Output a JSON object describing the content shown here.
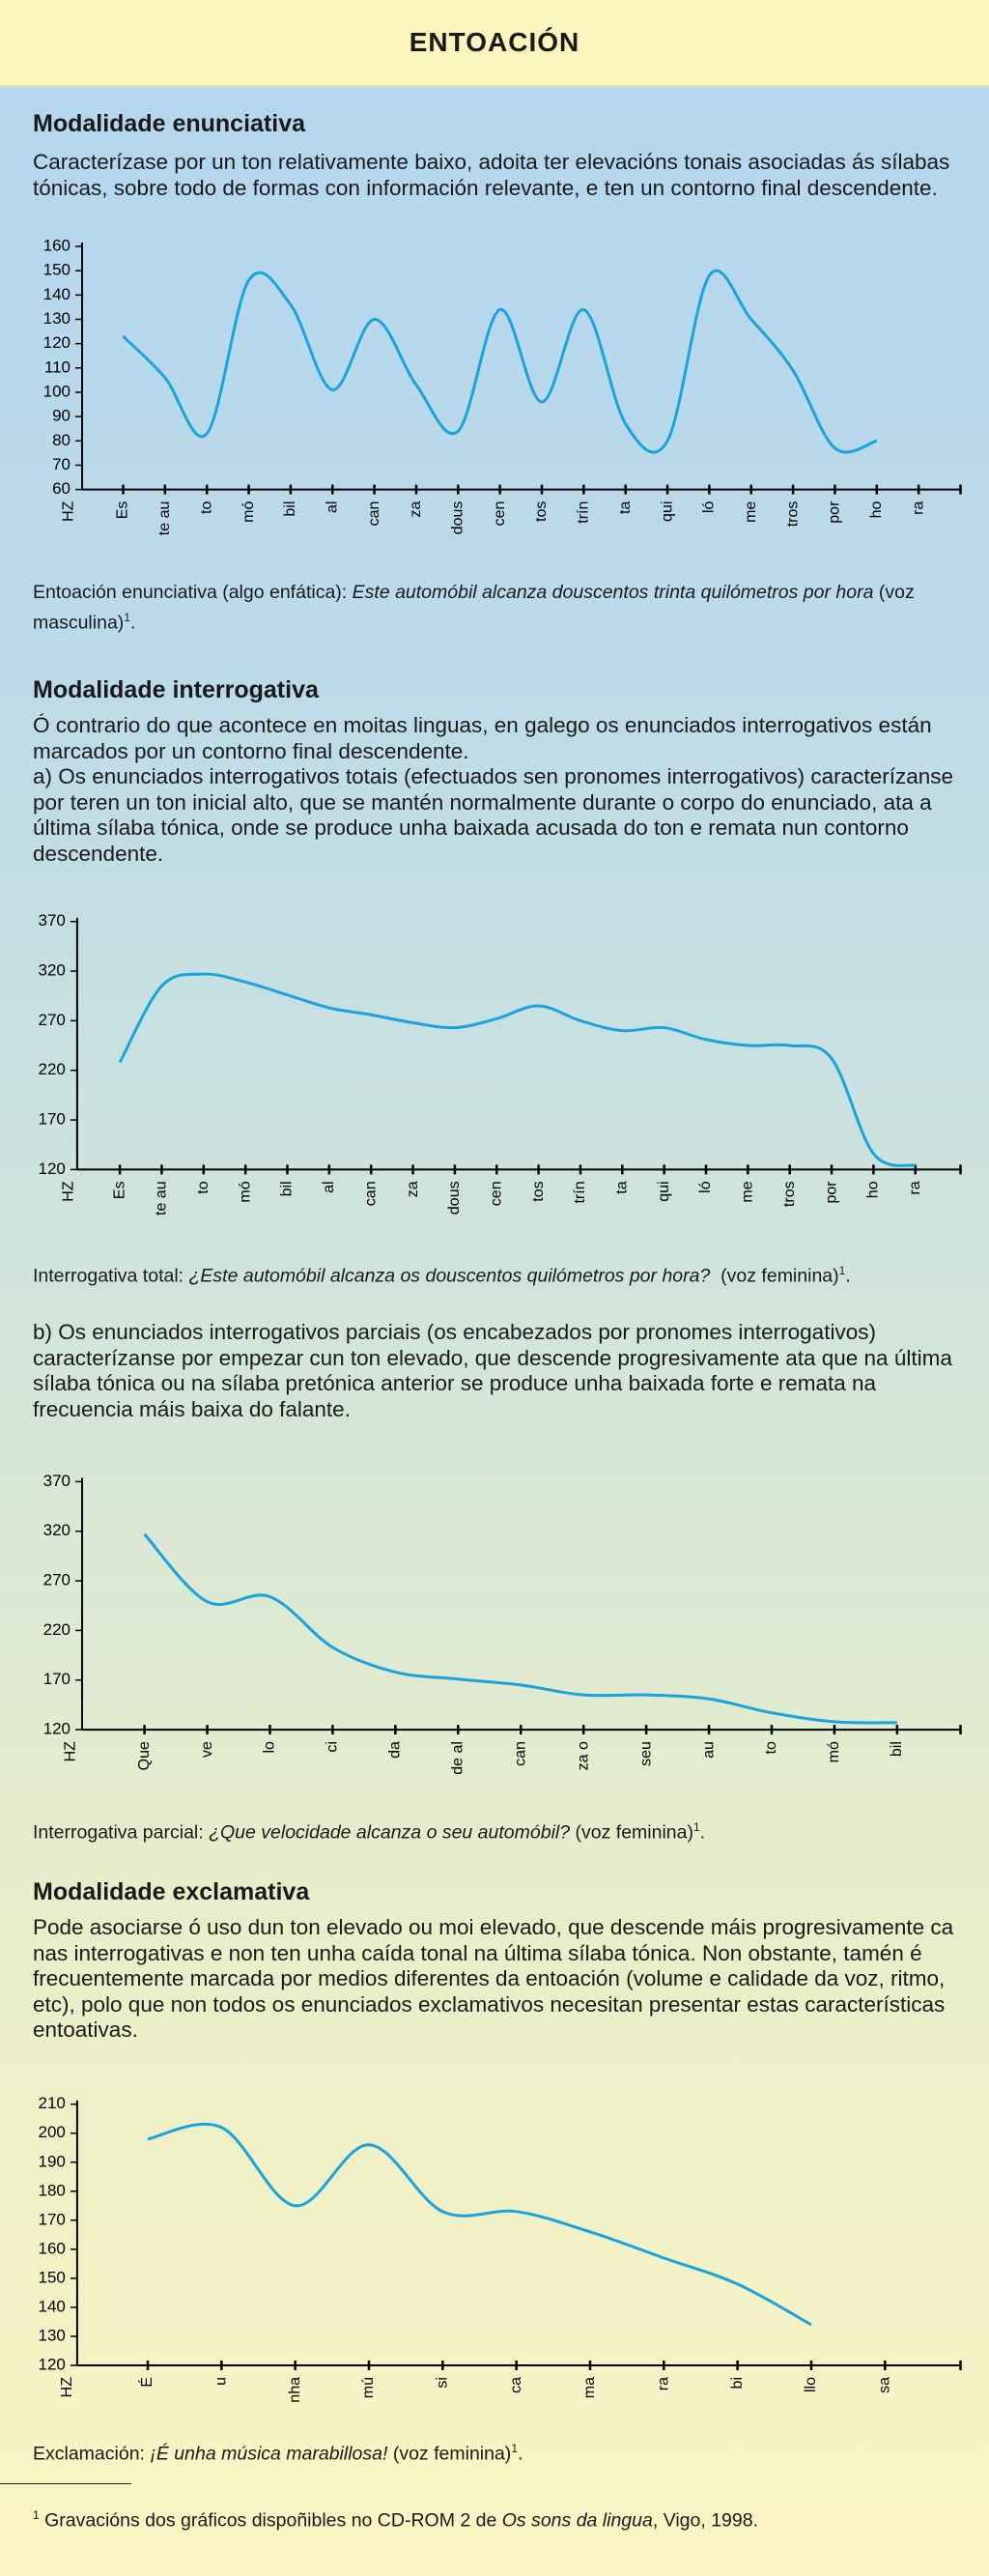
{
  "header": {
    "title": "ENTOACIÓN"
  },
  "sections": [
    {
      "heading": "Modalidade enunciativa",
      "paragraphs": [
        "Caracterízase por un ton relativamente baixo, adoita ter elevacións tonais asociadas ás sílabas tónicas, sobre todo de formas con información relevante, e ten un contorno final descendente."
      ],
      "caption": {
        "lead": "Entoación enunciativa (algo enfática):",
        "example": "Este automóbil alcanza douscentos trinta quilómetros por hora",
        "voice": "(voz masculina)",
        "note": "1",
        "end": "."
      }
    },
    {
      "heading": "Modalidade interrogativa",
      "paragraphs": [
        "Ó contrario do que acontece en moitas linguas, en galego os enunciados interrogativos están marcados por un contorno final descendente.",
        "a) Os enunciados interrogativos totais (efectuados sen pronomes interrogativos) caracterízanse por teren un ton inicial alto, que se mantén normalmente durante o corpo do enunciado, ata a última sílaba tónica, onde se produce unha baixada acusada do ton e remata nun contorno descendente."
      ],
      "caption": {
        "lead": "Interrogativa total:",
        "example": "¿Este automóbil alcanza os douscentos quilómetros por hora?",
        "voice": "(voz feminina)",
        "note": "1",
        "end": "."
      },
      "subsection": {
        "paragraphs": [
          "b) Os enunciados interrogativos parciais (os encabezados por pronomes interrogativos) caracterízanse por empezar cun ton elevado, que descende progresivamente ata que na última sílaba tónica ou na sílaba pretónica anterior se produce unha baixada forte e remata na frecuencia máis baixa do falante."
        ],
        "caption": {
          "lead": "Interrogativa parcial:",
          "example": "¿Que velocidade alcanza o seu automóbil?",
          "voice": "(voz feminina)",
          "note": "1",
          "end": "."
        }
      }
    },
    {
      "heading": "Modalidade exclamativa",
      "paragraphs": [
        "Pode asociarse ó uso dun ton elevado ou moi elevado, que descende máis progresivamente ca nas interrogativas e non ten unha caída tonal na última sílaba tónica. Non obstante, tamén é frecuentemente marcada por medios diferentes da entoación (volume e calidade da voz, ritmo, etc), polo que non todos os enunciados exclamativos necesitan presentar estas características entoativas."
      ],
      "caption": {
        "lead": "Exclamación:",
        "example": "¡É unha música marabillosa!",
        "voice": "(voz feminina)",
        "note": "1",
        "end": "."
      }
    }
  ],
  "footnote": {
    "note": "1",
    "text": "Gravacións dos gráficos dispoñibles no CD-ROM 2 de",
    "work": "Os sons da lingua",
    "rest": ", Vigo, 1998."
  },
  "chart_data": [
    {
      "type": "line",
      "y_label": "HZ",
      "color": "#1aa3dc",
      "categories": [
        "Es",
        "te au",
        "to",
        "mó",
        "bil",
        "al",
        "can",
        "za",
        "dous",
        "cen",
        "tos",
        "trín",
        "ta",
        "qui",
        "ló",
        "me",
        "tros",
        "por",
        "ho",
        "ra"
      ],
      "values": [
        123,
        106,
        83,
        146,
        136,
        101,
        130,
        103,
        84,
        134,
        96,
        134,
        87,
        80,
        148,
        130,
        109,
        77,
        80,
        null
      ],
      "ylim": [
        60,
        160
      ],
      "yticks": [
        60,
        70,
        80,
        90,
        100,
        110,
        120,
        130,
        140,
        150,
        160
      ]
    },
    {
      "type": "line",
      "y_label": "HZ",
      "color": "#1aa3dc",
      "categories": [
        "Es",
        "te au",
        "to",
        "mó",
        "bil",
        "al",
        "can",
        "za",
        "dous",
        "cen",
        "tos",
        "trín",
        "ta",
        "qui",
        "ló",
        "me",
        "tros",
        "por",
        "ho",
        "ra"
      ],
      "values": [
        228,
        305,
        317,
        309,
        296,
        283,
        276,
        268,
        263,
        272,
        285,
        270,
        260,
        263,
        251,
        245,
        245,
        232,
        136,
        124
      ],
      "ylim": [
        120,
        370
      ],
      "yticks": [
        120,
        170,
        220,
        270,
        320,
        370
      ]
    },
    {
      "type": "line",
      "y_label": "HZ",
      "color": "#1aa3dc",
      "categories": [
        "Que",
        "ve",
        "lo",
        "ci",
        "da",
        "de al",
        "can",
        "za o",
        "seu",
        "au",
        "to",
        "mó",
        "bil"
      ],
      "values": [
        317,
        249,
        254,
        203,
        178,
        171,
        165,
        155,
        155,
        151,
        137,
        128,
        127
      ],
      "ylim": [
        120,
        370
      ],
      "yticks": [
        120,
        170,
        220,
        270,
        320,
        370
      ]
    },
    {
      "type": "line",
      "y_label": "HZ",
      "color": "#1aa3dc",
      "categories": [
        "É",
        "u",
        "nha",
        "mú",
        "si",
        "ca",
        "ma",
        "ra",
        "bi",
        "llo",
        "sa"
      ],
      "values": [
        198,
        202,
        175,
        196,
        173,
        173,
        166,
        157,
        148,
        134,
        null
      ],
      "ylim": [
        120,
        210
      ],
      "yticks": [
        120,
        130,
        140,
        150,
        160,
        170,
        180,
        190,
        200,
        210
      ]
    }
  ]
}
